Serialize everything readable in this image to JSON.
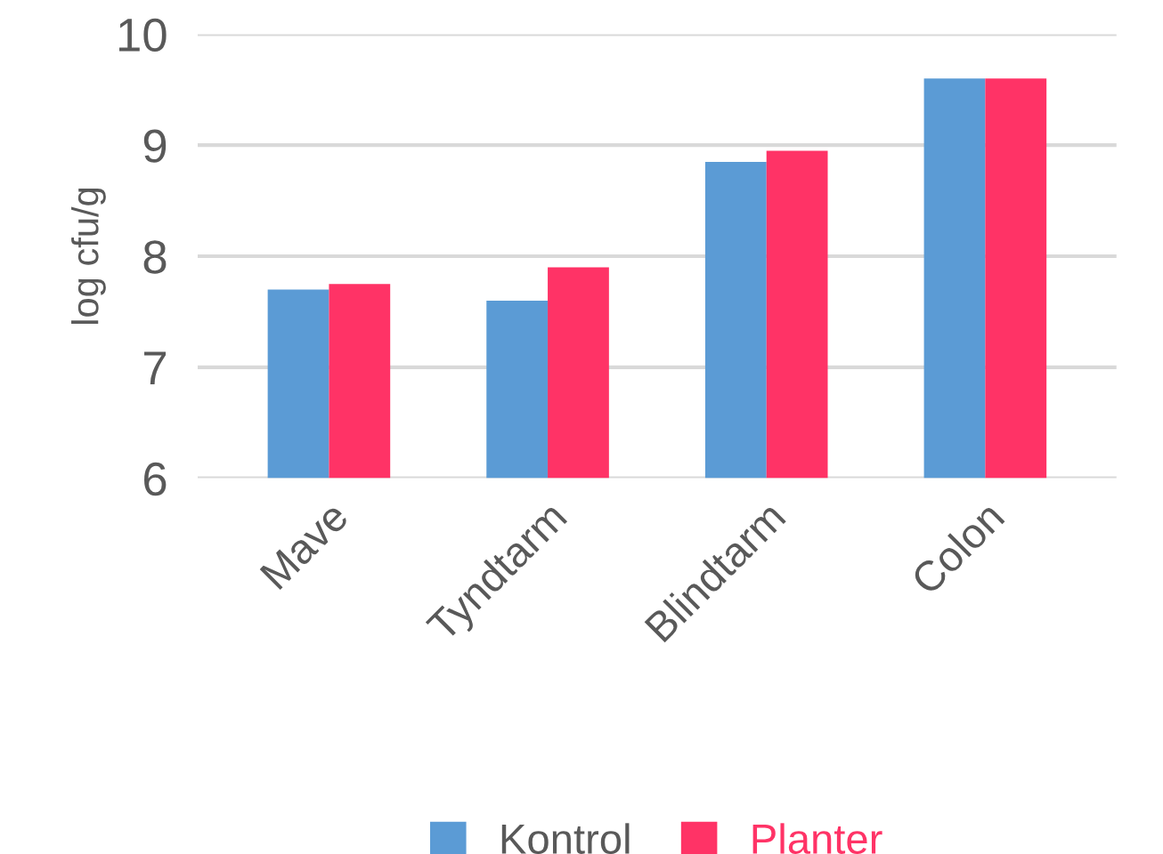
{
  "chart_data": {
    "type": "bar",
    "ylabel": "log cfu/g",
    "categories": [
      "Mave",
      "Tyndtarm",
      "Blindtarm",
      "Colon"
    ],
    "series": [
      {
        "name": "Kontrol",
        "color": "#5b9bd5",
        "values": [
          7.7,
          7.6,
          8.85,
          9.6
        ]
      },
      {
        "name": "Planter",
        "color": "#ff3366",
        "values": [
          7.75,
          7.9,
          8.95,
          9.6
        ]
      }
    ],
    "ylim": [
      6,
      10
    ],
    "yticks": [
      6,
      7,
      8,
      9,
      10
    ],
    "grid": "y",
    "legend": "bottom"
  }
}
